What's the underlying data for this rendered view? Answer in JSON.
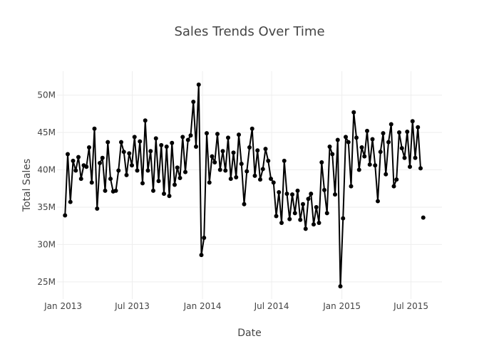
{
  "chart_data": {
    "type": "line",
    "title": "Sales Trends Over Time",
    "xlabel": "Date",
    "ylabel": "Total Sales",
    "x_range": [
      "2012-12-16",
      "2015-09-20"
    ],
    "y_range": [
      22700000,
      53200000
    ],
    "grid": true,
    "legend": "none",
    "line_color": "#000000",
    "marker_color": "#000000",
    "x_ticks": [
      {
        "value": "2013-01-01",
        "label": "Jan 2013"
      },
      {
        "value": "2013-07-01",
        "label": "Jul 2013"
      },
      {
        "value": "2014-01-01",
        "label": "Jan 2014"
      },
      {
        "value": "2014-07-01",
        "label": "Jul 2014"
      },
      {
        "value": "2015-01-01",
        "label": "Jan 2015"
      },
      {
        "value": "2015-07-01",
        "label": "Jul 2015"
      }
    ],
    "y_ticks": [
      {
        "value": 25000000,
        "label": "25M"
      },
      {
        "value": 30000000,
        "label": "30M"
      },
      {
        "value": 35000000,
        "label": "35M"
      },
      {
        "value": 40000000,
        "label": "40M"
      },
      {
        "value": 45000000,
        "label": "45M"
      },
      {
        "value": 50000000,
        "label": "50M"
      }
    ],
    "series": [
      {
        "x": [
          "2013-01-06",
          "2013-01-13",
          "2013-01-20",
          "2013-01-27",
          "2013-02-03",
          "2013-02-10",
          "2013-02-17",
          "2013-02-24",
          "2013-03-03",
          "2013-03-10",
          "2013-03-17",
          "2013-03-24",
          "2013-03-31",
          "2013-04-07",
          "2013-04-14",
          "2013-04-21",
          "2013-04-28",
          "2013-05-05",
          "2013-05-12",
          "2013-05-19",
          "2013-05-26",
          "2013-06-02",
          "2013-06-09",
          "2013-06-16",
          "2013-06-23",
          "2013-06-30",
          "2013-07-07",
          "2013-07-14",
          "2013-07-21",
          "2013-07-28",
          "2013-08-04",
          "2013-08-11",
          "2013-08-18",
          "2013-08-25",
          "2013-09-01",
          "2013-09-08",
          "2013-09-15",
          "2013-09-22",
          "2013-09-29",
          "2013-10-06",
          "2013-10-13",
          "2013-10-20",
          "2013-10-27",
          "2013-11-03",
          "2013-11-10",
          "2013-11-17",
          "2013-11-24",
          "2013-12-01",
          "2013-12-08",
          "2013-12-15",
          "2013-12-22",
          "2013-12-29",
          "2014-01-05",
          "2014-01-12",
          "2014-01-19",
          "2014-01-26",
          "2014-02-02",
          "2014-02-09",
          "2014-02-16",
          "2014-02-23",
          "2014-03-02",
          "2014-03-09",
          "2014-03-16",
          "2014-03-23",
          "2014-03-30",
          "2014-04-06",
          "2014-04-13",
          "2014-04-20",
          "2014-04-27",
          "2014-05-04",
          "2014-05-11",
          "2014-05-18",
          "2014-05-25",
          "2014-06-01",
          "2014-06-08",
          "2014-06-15",
          "2014-06-22",
          "2014-06-29",
          "2014-07-06",
          "2014-07-13",
          "2014-07-20",
          "2014-07-27",
          "2014-08-03",
          "2014-08-10",
          "2014-08-17",
          "2014-08-24",
          "2014-08-31",
          "2014-09-07",
          "2014-09-14",
          "2014-09-21",
          "2014-09-28",
          "2014-10-05",
          "2014-10-12",
          "2014-10-19",
          "2014-10-26",
          "2014-11-02",
          "2014-11-09",
          "2014-11-16",
          "2014-11-23",
          "2014-11-30",
          "2014-12-07",
          "2014-12-14",
          "2014-12-21",
          "2014-12-28",
          "2015-01-04",
          "2015-01-11",
          "2015-01-18",
          "2015-01-25",
          "2015-02-01",
          "2015-02-08",
          "2015-02-15",
          "2015-02-22",
          "2015-03-01",
          "2015-03-08",
          "2015-03-15",
          "2015-03-22",
          "2015-03-29",
          "2015-04-05",
          "2015-04-12",
          "2015-04-19",
          "2015-04-26",
          "2015-05-03",
          "2015-05-10",
          "2015-05-17",
          "2015-05-24",
          "2015-05-31",
          "2015-06-07",
          "2015-06-14",
          "2015-06-21",
          "2015-06-28",
          "2015-07-05",
          "2015-07-12",
          "2015-07-19",
          "2015-07-26"
        ],
        "values": [
          33900000,
          42100000,
          35700000,
          41200000,
          39900000,
          41700000,
          38800000,
          40600000,
          40400000,
          43000000,
          38300000,
          45500000,
          34800000,
          40900000,
          41600000,
          37200000,
          43700000,
          38800000,
          37100000,
          37200000,
          39900000,
          43700000,
          42400000,
          39300000,
          42200000,
          40600000,
          44400000,
          39900000,
          43800000,
          38200000,
          46600000,
          39900000,
          42500000,
          37200000,
          44200000,
          38500000,
          43300000,
          36800000,
          43100000,
          36500000,
          43600000,
          38000000,
          40300000,
          38900000,
          44400000,
          39700000,
          44000000,
          44600000,
          49100000,
          43100000,
          51400000,
          28600000,
          30900000,
          44900000,
          38300000,
          41800000,
          41000000,
          44800000,
          40000000,
          42500000,
          39900000,
          44300000,
          38800000,
          42300000,
          39000000,
          44700000,
          40800000,
          35400000,
          39800000,
          43000000,
          45500000,
          39200000,
          42600000,
          38700000,
          40100000,
          42800000,
          41200000,
          38800000,
          38300000,
          33800000,
          37000000,
          32900000,
          41200000,
          36800000,
          33400000,
          36700000,
          34200000,
          37200000,
          33300000,
          35400000,
          32100000,
          36100000,
          36800000,
          32700000,
          35000000,
          32900000,
          41000000,
          37300000,
          34200000,
          43100000,
          42100000,
          36700000,
          44000000,
          24400000,
          33500000,
          44400000,
          43700000,
          37800000,
          47700000,
          44300000,
          40000000,
          43000000,
          41800000,
          45200000,
          40700000,
          44100000,
          40600000,
          35800000,
          42400000,
          44900000,
          39400000,
          43700000,
          46100000,
          37800000,
          38700000,
          45000000,
          42900000,
          41600000,
          45100000,
          40400000,
          46500000,
          41600000,
          45700000,
          40200000
        ]
      },
      {
        "x": [
          "2015-08-02"
        ],
        "values": [
          33600000
        ]
      }
    ]
  }
}
